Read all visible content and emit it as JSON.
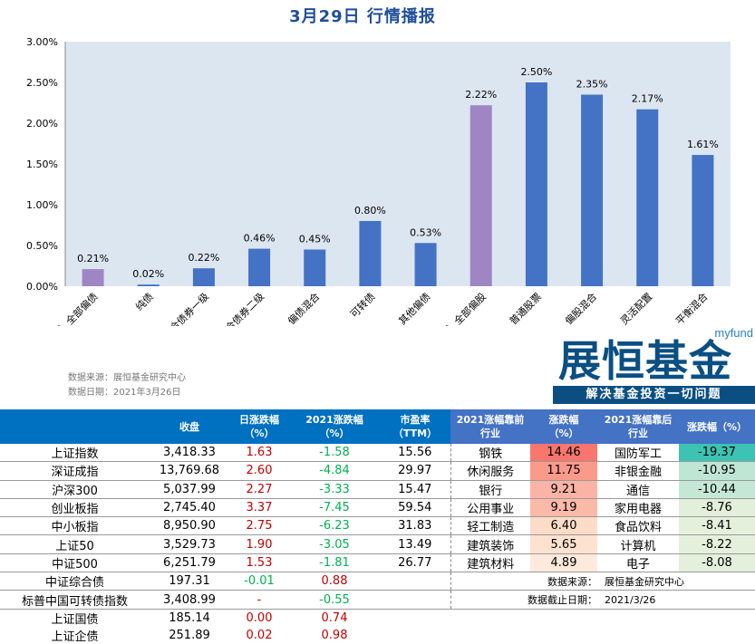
{
  "title": "3月29日  行情播报",
  "chart_data": {
    "type": "bar",
    "categories": [
      "（总）全部偏债",
      "纯债",
      "混合债券一级",
      "混合债券二级",
      "偏债混合",
      "可转债",
      "其他偏债",
      "（总）全部偏股",
      "普通股票",
      "偏股混合",
      "灵活配置",
      "平衡混合"
    ],
    "values": [
      0.21,
      0.02,
      0.22,
      0.46,
      0.45,
      0.8,
      0.53,
      2.22,
      2.5,
      2.35,
      2.17,
      1.61
    ],
    "data_labels": [
      "0.21%",
      "0.02%",
      "0.22%",
      "0.46%",
      "0.45%",
      "0.80%",
      "0.53%",
      "2.22%",
      "2.50%",
      "2.35%",
      "2.17%",
      "1.61%"
    ],
    "ylim": [
      0,
      3
    ],
    "yticks": [
      "0.00%",
      "0.50%",
      "1.00%",
      "1.50%",
      "2.00%",
      "2.50%",
      "3.00%"
    ],
    "grid": false,
    "colors": {
      "default": "#4472c4",
      "highlight": "#9e86c5",
      "plot_bg": "#dce6f1"
    },
    "highlight_index": [
      0,
      7
    ]
  },
  "source": {
    "line1": "数据来源：展恒基金研究中心",
    "line2": "数据日期：2021年3月26日"
  },
  "logo": {
    "top": "myfund",
    "name": "展恒基金",
    "slogan": "解决基金投资一切问题"
  },
  "table": {
    "headers": [
      "",
      "收盘",
      "日涨跌幅\n（%）",
      "2021涨跌幅\n（%）",
      "市盈率\n（TTM）",
      "2021涨幅靠前\n行业",
      "涨跌幅\n（%）",
      "2021涨幅靠后\n行业",
      "涨跌幅（%）"
    ],
    "rows": [
      [
        "上证指数",
        "3,418.33",
        "1.63",
        "-1.58",
        "15.56",
        "钢铁",
        "14.46",
        "国防军工",
        "-19.37"
      ],
      [
        "深证成指",
        "13,769.68",
        "2.60",
        "-4.84",
        "29.97",
        "休闲服务",
        "11.75",
        "非银金融",
        "-10.95"
      ],
      [
        "沪深300",
        "5,037.99",
        "2.27",
        "-3.33",
        "15.47",
        "银行",
        "9.21",
        "通信",
        "-10.44"
      ],
      [
        "创业板指",
        "2,745.40",
        "3.37",
        "-7.45",
        "59.54",
        "公用事业",
        "9.19",
        "家用电器",
        "-8.76"
      ],
      [
        "中小板指",
        "8,950.90",
        "2.75",
        "-6.23",
        "31.83",
        "轻工制造",
        "6.40",
        "食品饮料",
        "-8.41"
      ],
      [
        "上证50",
        "3,529.73",
        "1.90",
        "-3.05",
        "13.49",
        "建筑装饰",
        "5.65",
        "计算机",
        "-8.22"
      ],
      [
        "中证500",
        "6,251.79",
        "1.53",
        "-1.81",
        "26.77",
        "建筑材料",
        "4.89",
        "电子",
        "-8.08"
      ],
      [
        "中证综合债",
        "197.31",
        "-0.01",
        "0.88",
        "",
        "",
        "",
        "",
        ""
      ],
      [
        "标普中国可转债指数",
        "3,408.99",
        "-",
        "-0.55",
        "",
        "",
        "",
        "",
        ""
      ],
      [
        "上证国债",
        "185.14",
        "0.00",
        "0.74",
        "",
        "",
        "",
        "",
        ""
      ],
      [
        "上证企债",
        "251.89",
        "0.02",
        "0.98",
        "",
        "",
        "",
        "",
        ""
      ]
    ],
    "notes": [
      [
        "数据来源：",
        "展恒基金研究中心"
      ],
      [
        "数据截止日期：",
        "2021/3/26"
      ]
    ],
    "top_colors": [
      "#f8766d",
      "#fa9a8b",
      "#fbb3a5",
      "#fbb9a8",
      "#fddcc7",
      "#fde2cf",
      "#feeadc"
    ],
    "bottom_colors": [
      "#3cc3b3",
      "#bfe5d4",
      "#c5e8d6",
      "#e2efda",
      "#e4f0dc",
      "#e4f0dc",
      "#e4f0dc"
    ]
  }
}
